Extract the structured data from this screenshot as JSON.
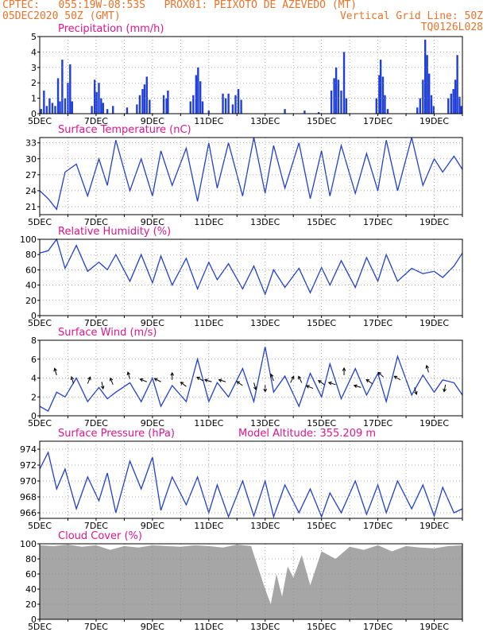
{
  "header": {
    "line1_left": "CPTEC:   055:19W-08:53S   PROX01: PEIXOTO DE AZEVEDO (MT)",
    "line2_left": "05DEC2020 50Z (GMT)",
    "line2_right": "Vertical Grid Line: 50Z",
    "line3_right": "TQ0126L028"
  },
  "colors": {
    "header": "#e8732a",
    "panel_title": "#e0148c",
    "series": "#1f3fd8",
    "cloud": "#a6a6a6",
    "grid": "#888888"
  },
  "x_ticks": [
    "5DEC",
    "7DEC",
    "9DEC",
    "11DEC",
    "13DEC",
    "15DEC",
    "17DEC",
    "19DEC"
  ],
  "chart_data": [
    {
      "type": "bar",
      "title": "Precipitation (mm/h)",
      "ylim": [
        0,
        5
      ],
      "yticks": [
        0,
        1,
        2,
        3,
        4,
        5
      ],
      "x_range_days": [
        0,
        15.0
      ],
      "values_events": [
        [
          0.05,
          0.3
        ],
        [
          0.15,
          1.5
        ],
        [
          0.25,
          0.5
        ],
        [
          0.35,
          1.0
        ],
        [
          0.45,
          0.7
        ],
        [
          0.55,
          0.5
        ],
        [
          0.65,
          2.3
        ],
        [
          0.72,
          0.8
        ],
        [
          0.8,
          3.5
        ],
        [
          0.9,
          1.0
        ],
        [
          1.0,
          2.0
        ],
        [
          1.08,
          3.2
        ],
        [
          1.15,
          0.8
        ],
        [
          1.85,
          0.5
        ],
        [
          1.95,
          2.2
        ],
        [
          2.02,
          1.4
        ],
        [
          2.1,
          2.0
        ],
        [
          2.18,
          1.0
        ],
        [
          2.25,
          0.7
        ],
        [
          2.4,
          0.3
        ],
        [
          2.6,
          0.5
        ],
        [
          3.1,
          0.4
        ],
        [
          3.45,
          0.6
        ],
        [
          3.55,
          1.2
        ],
        [
          3.65,
          1.6
        ],
        [
          3.72,
          1.9
        ],
        [
          3.8,
          2.4
        ],
        [
          3.9,
          0.9
        ],
        [
          4.4,
          1.2
        ],
        [
          4.5,
          1.0
        ],
        [
          4.55,
          1.5
        ],
        [
          5.35,
          0.8
        ],
        [
          5.45,
          1.2
        ],
        [
          5.55,
          2.5
        ],
        [
          5.62,
          3.0
        ],
        [
          5.7,
          2.1
        ],
        [
          5.78,
          0.8
        ],
        [
          6.0,
          0.2
        ],
        [
          6.5,
          1.3
        ],
        [
          6.6,
          1.0
        ],
        [
          6.7,
          1.3
        ],
        [
          6.85,
          0.6
        ],
        [
          6.95,
          1.2
        ],
        [
          7.05,
          1.6
        ],
        [
          7.15,
          0.9
        ],
        [
          8.7,
          0.3
        ],
        [
          9.4,
          0.2
        ],
        [
          9.9,
          0.1
        ],
        [
          10.35,
          1.5
        ],
        [
          10.45,
          2.3
        ],
        [
          10.52,
          3.0
        ],
        [
          10.6,
          2.2
        ],
        [
          10.7,
          1.5
        ],
        [
          10.8,
          4.0
        ],
        [
          10.88,
          1.0
        ],
        [
          11.95,
          1.0
        ],
        [
          12.05,
          2.5
        ],
        [
          12.1,
          3.5
        ],
        [
          12.18,
          2.4
        ],
        [
          12.25,
          1.2
        ],
        [
          12.35,
          0.3
        ],
        [
          13.4,
          0.4
        ],
        [
          13.5,
          1.0
        ],
        [
          13.6,
          2.2
        ],
        [
          13.68,
          4.8
        ],
        [
          13.75,
          3.8
        ],
        [
          13.82,
          2.6
        ],
        [
          13.9,
          1.2
        ],
        [
          13.98,
          0.5
        ],
        [
          14.5,
          1.0
        ],
        [
          14.6,
          1.3
        ],
        [
          14.68,
          1.6
        ],
        [
          14.75,
          2.2
        ],
        [
          14.82,
          3.8
        ],
        [
          14.9,
          1.1
        ],
        [
          14.96,
          0.5
        ]
      ]
    },
    {
      "type": "line",
      "title": "Surface Temperature (nC)",
      "ylim": [
        19.5,
        34
      ],
      "yticks": [
        21,
        24,
        27,
        30,
        33
      ],
      "x": [
        0,
        0.3,
        0.6,
        0.9,
        1.3,
        1.7,
        2.1,
        2.4,
        2.7,
        3.2,
        3.6,
        4.0,
        4.3,
        4.7,
        5.2,
        5.6,
        6.0,
        6.3,
        6.7,
        7.2,
        7.6,
        8.0,
        8.3,
        8.7,
        9.2,
        9.6,
        10.0,
        10.3,
        10.7,
        11.2,
        11.6,
        12.0,
        12.3,
        12.7,
        13.2,
        13.6,
        14.0,
        14.3,
        14.7,
        15.0
      ],
      "values": [
        24.0,
        22.5,
        20.5,
        27.5,
        29.0,
        23.0,
        30.0,
        25.0,
        33.5,
        24.0,
        30.0,
        23.0,
        31.5,
        25.0,
        32.0,
        22.0,
        33.0,
        24.5,
        33.0,
        23.0,
        34.0,
        23.5,
        32.5,
        24.5,
        33.0,
        22.5,
        31.5,
        23.0,
        32.5,
        23.5,
        31.0,
        24.0,
        33.5,
        24.0,
        34.0,
        25.0,
        30.0,
        27.5,
        30.5,
        28.0
      ]
    },
    {
      "type": "line",
      "title": "Relative Humidity (%)",
      "ylim": [
        0,
        100
      ],
      "yticks": [
        0,
        20,
        40,
        60,
        80,
        100
      ],
      "x": [
        0,
        0.3,
        0.6,
        0.9,
        1.3,
        1.7,
        2.1,
        2.4,
        2.7,
        3.2,
        3.6,
        4.0,
        4.3,
        4.7,
        5.2,
        5.6,
        6.0,
        6.3,
        6.7,
        7.2,
        7.6,
        8.0,
        8.3,
        8.7,
        9.2,
        9.6,
        10.0,
        10.3,
        10.7,
        11.2,
        11.6,
        12.0,
        12.3,
        12.7,
        13.2,
        13.6,
        14.0,
        14.3,
        14.7,
        15.0
      ],
      "values": [
        82,
        85,
        100,
        62,
        92,
        58,
        70,
        60,
        80,
        45,
        80,
        43,
        78,
        40,
        75,
        35,
        70,
        47,
        68,
        35,
        65,
        28,
        60,
        37,
        62,
        30,
        63,
        40,
        72,
        37,
        76,
        45,
        80,
        45,
        62,
        55,
        58,
        50,
        65,
        82
      ]
    },
    {
      "type": "line",
      "title": "Surface Wind (m/s)",
      "ylim": [
        0,
        8
      ],
      "yticks": [
        0,
        2,
        4,
        6,
        8
      ],
      "x": [
        0,
        0.3,
        0.6,
        0.9,
        1.3,
        1.7,
        2.1,
        2.4,
        2.7,
        3.2,
        3.6,
        4.0,
        4.3,
        4.7,
        5.2,
        5.6,
        6.0,
        6.3,
        6.7,
        7.2,
        7.6,
        8.0,
        8.3,
        8.7,
        9.2,
        9.6,
        10.0,
        10.3,
        10.7,
        11.2,
        11.6,
        12.0,
        12.3,
        12.7,
        13.2,
        13.6,
        14.0,
        14.3,
        14.7,
        15.0
      ],
      "values": [
        1.0,
        0.5,
        2.5,
        2.0,
        4.0,
        1.5,
        3.0,
        1.8,
        2.5,
        3.5,
        1.5,
        4.0,
        1.0,
        3.2,
        1.5,
        6.0,
        1.5,
        3.5,
        2.0,
        5.0,
        1.5,
        7.3,
        2.5,
        4.2,
        1.0,
        4.5,
        2.0,
        5.5,
        1.8,
        5.0,
        2.2,
        4.5,
        1.5,
        6.3,
        2.2,
        4.3,
        2.5,
        3.8,
        3.5,
        2.2
      ],
      "arrows": [
        [
          0.6,
          4.3,
          -0.3,
          1
        ],
        [
          1.2,
          3.4,
          -0.3,
          1
        ],
        [
          1.7,
          3.4,
          0.4,
          1
        ],
        [
          2.2,
          3.6,
          0.2,
          -1
        ],
        [
          2.6,
          3.3,
          -0.4,
          1
        ],
        [
          3.2,
          3.9,
          -0.3,
          1
        ],
        [
          3.8,
          3.6,
          -1,
          0.4
        ],
        [
          4.3,
          3.6,
          -1,
          0.5
        ],
        [
          4.7,
          3.8,
          0,
          1
        ],
        [
          5.2,
          3.1,
          -0.9,
          0.7
        ],
        [
          5.8,
          3.7,
          -1,
          0.6
        ],
        [
          6.1,
          3.6,
          -1,
          0.3
        ],
        [
          6.6,
          3.6,
          -1,
          0.3
        ],
        [
          7.2,
          3.2,
          -1,
          0.7
        ],
        [
          7.6,
          3.5,
          0.3,
          -1
        ],
        [
          8.0,
          3.3,
          0,
          -1
        ],
        [
          8.3,
          3.7,
          -0.4,
          1
        ],
        [
          8.9,
          3.5,
          0.5,
          1
        ],
        [
          9.3,
          3.5,
          -0.5,
          1
        ],
        [
          9.7,
          2.9,
          -1,
          0.4
        ],
        [
          10.1,
          3.3,
          -1,
          0.7
        ],
        [
          10.5,
          3.3,
          -1,
          0.3
        ],
        [
          10.8,
          4.3,
          0,
          1
        ],
        [
          11.4,
          3.0,
          -1,
          0.3
        ],
        [
          11.8,
          3.4,
          -1,
          0.7
        ],
        [
          12.2,
          4.1,
          -1,
          0.9
        ],
        [
          12.8,
          3.8,
          -1,
          0.6
        ],
        [
          13.3,
          3.0,
          0.3,
          -1
        ],
        [
          13.8,
          4.6,
          -0.3,
          1
        ],
        [
          14.4,
          3.3,
          -0.2,
          -1
        ]
      ]
    },
    {
      "type": "line",
      "title": "Surface Pressure (hPa)",
      "annotation": "Model Altitude: 355.209 m",
      "ylim": [
        965.3,
        975
      ],
      "yticks": [
        966,
        968,
        970,
        972,
        974
      ],
      "x": [
        0,
        0.3,
        0.6,
        0.9,
        1.3,
        1.7,
        2.1,
        2.4,
        2.7,
        3.2,
        3.6,
        4.0,
        4.3,
        4.7,
        5.2,
        5.6,
        6.0,
        6.3,
        6.7,
        7.2,
        7.6,
        8.0,
        8.3,
        8.7,
        9.2,
        9.6,
        10.0,
        10.3,
        10.7,
        11.2,
        11.6,
        12.0,
        12.3,
        12.7,
        13.2,
        13.6,
        14.0,
        14.3,
        14.7,
        15.0
      ],
      "values": [
        971.5,
        973.6,
        969.0,
        971.5,
        966.5,
        970.5,
        967.5,
        971.0,
        966.0,
        972.5,
        969.0,
        973.0,
        966.3,
        970.5,
        967.0,
        970.5,
        966.0,
        969.5,
        965.5,
        970.0,
        965.6,
        970.0,
        965.5,
        969.5,
        966.0,
        969.0,
        965.5,
        968.5,
        966.0,
        970.0,
        965.8,
        969.5,
        966.0,
        970.0,
        966.5,
        969.5,
        965.6,
        969.2,
        966.0,
        966.5
      ]
    },
    {
      "type": "area",
      "title": "Cloud Cover (%)",
      "ylim": [
        0,
        100
      ],
      "yticks": [
        0,
        20,
        40,
        60,
        80,
        100
      ],
      "x": [
        0,
        0.5,
        1.0,
        1.5,
        2.0,
        2.5,
        3.0,
        3.5,
        4.0,
        4.5,
        5.0,
        5.5,
        6.0,
        6.5,
        7.0,
        7.5,
        8.0,
        8.2,
        8.4,
        8.6,
        8.8,
        9.0,
        9.3,
        9.6,
        10.0,
        10.5,
        11.0,
        11.5,
        12.0,
        12.5,
        13.0,
        13.5,
        14.0,
        14.5,
        15.0
      ],
      "values": [
        98,
        97,
        99,
        96,
        98,
        92,
        97,
        95,
        98,
        97,
        96,
        98,
        97,
        95,
        99,
        97,
        40,
        20,
        60,
        30,
        70,
        55,
        85,
        45,
        90,
        80,
        96,
        92,
        98,
        90,
        97,
        95,
        94,
        97,
        98
      ]
    }
  ]
}
